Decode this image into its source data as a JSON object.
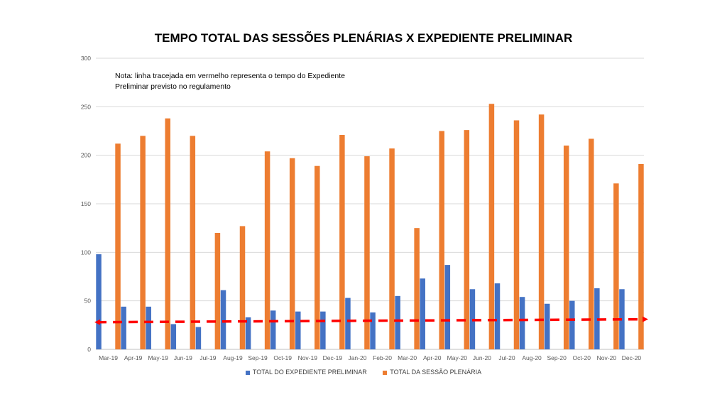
{
  "chart_data": {
    "type": "bar",
    "title": "TEMPO TOTAL DAS SESSÕES PLENÁRIAS X  EXPEDIENTE PRELIMINAR",
    "note": "Nota: linha tracejada em vermelho representa o tempo do Expediente Preliminar previsto no regulamento",
    "xlabel": "",
    "ylabel": "",
    "ylim": [
      0,
      300
    ],
    "yticks": [
      0,
      50,
      100,
      150,
      200,
      250,
      300
    ],
    "categories": [
      "Mar-19",
      "Apr-19",
      "May-19",
      "Jun-19",
      "Jul-19",
      "Aug-19",
      "Sep-19",
      "Oct-19",
      "Nov-19",
      "Dec-19",
      "Jan-20",
      "Feb-20",
      "Mar-20",
      "Apr-20",
      "May-20",
      "Jun-20",
      "Jul-20",
      "Aug-20",
      "Sep-20",
      "Oct-20",
      "Nov-20",
      "Dec-20"
    ],
    "series": [
      {
        "name": "TOTAL DO EXPEDIENTE PRELIMINAR",
        "color": "#4472C4",
        "values": [
          98,
          44,
          44,
          26,
          23,
          61,
          33,
          40,
          39,
          39,
          53,
          38,
          55,
          73,
          87,
          62,
          68,
          54,
          47,
          50,
          63,
          62
        ]
      },
      {
        "name": "TOTAL DA SESSÃO PLENÁRIA",
        "color": "#ED7D31",
        "values": [
          212,
          220,
          238,
          220,
          120,
          127,
          204,
          197,
          189,
          221,
          199,
          207,
          125,
          225,
          226,
          253,
          236,
          242,
          210,
          217,
          171,
          191
        ]
      }
    ],
    "reference_line": {
      "description": "tempo do Expediente Preliminar previsto no regulamento",
      "color": "#FF0000",
      "start_value": 28,
      "end_value": 31
    },
    "grid": true,
    "legend": "bottom"
  }
}
